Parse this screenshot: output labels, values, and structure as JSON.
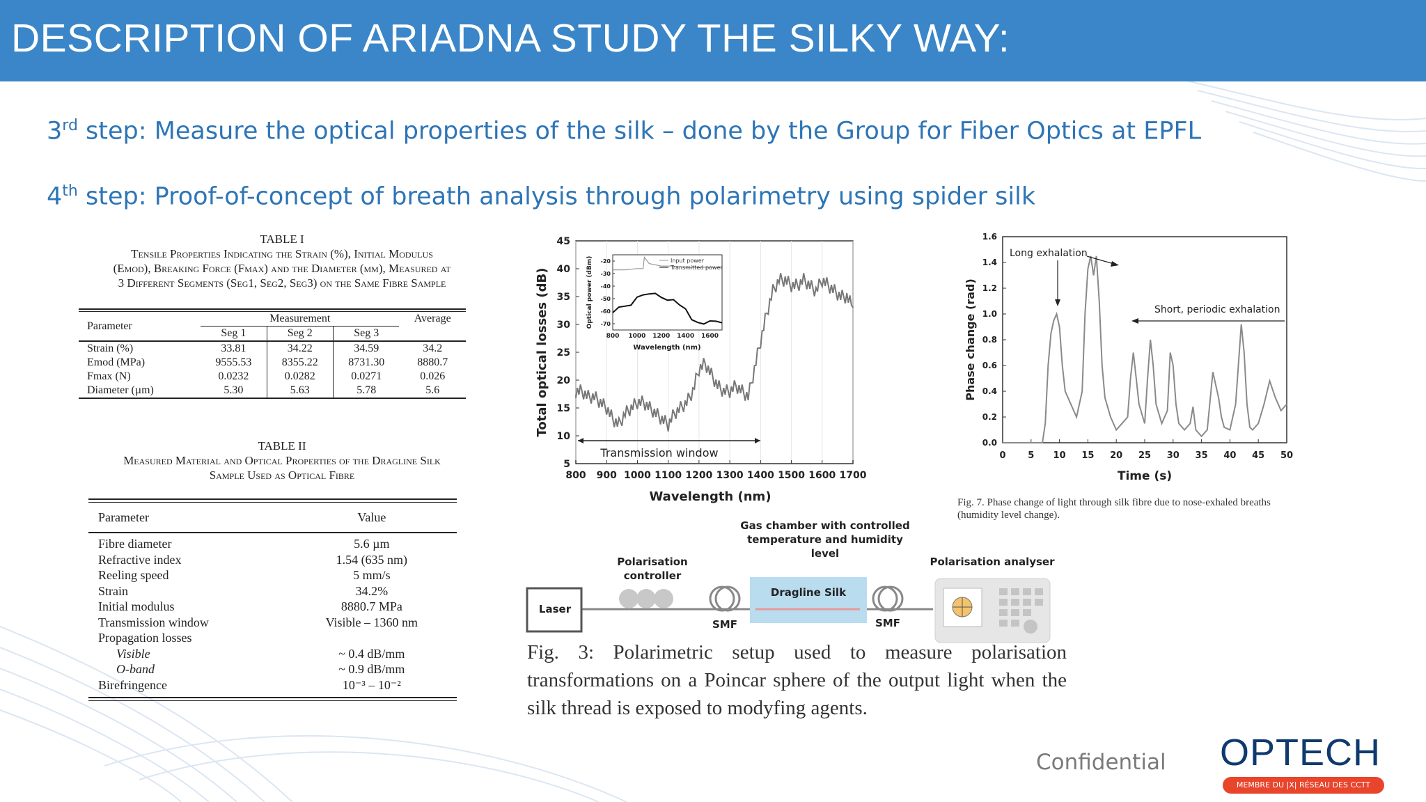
{
  "header": {
    "title": "DESCRIPTION OF ARIADNA STUDY THE SILKY WAY:"
  },
  "steps": [
    {
      "num": "3",
      "sup": "rd",
      "text": " step: Measure the optical properties of the silk – done by the Group for Fiber Optics at EPFL"
    },
    {
      "num": "4",
      "sup": "th",
      "text": " step: Proof-of-concept of breath analysis through polarimetry using spider silk"
    }
  ],
  "table1": {
    "label": "TABLE I",
    "caption_l1": "Tensile Properties Indicating the Strain (%), Initial Modulus",
    "caption_l2": "(Emod), Breaking Force (Fmax) and the Diameter (µm), Measured at",
    "caption_l3": "3 Different Segments (Seg1, Seg2, Seg3) on the Same Fibre Sample",
    "head_param": "Parameter",
    "head_measurement": "Measurement",
    "head_average": "Average",
    "seg_headers": [
      "Seg 1",
      "Seg 2",
      "Seg 3"
    ],
    "rows": [
      {
        "param": "Strain (%)",
        "values": [
          "33.81",
          "34.22",
          "34.59"
        ],
        "avg": "34.2"
      },
      {
        "param": "Emod (MPa)",
        "values": [
          "9555.53",
          "8355.22",
          "8731.30"
        ],
        "avg": "8880.7"
      },
      {
        "param": "Fmax (N)",
        "values": [
          "0.0232",
          "0.0282",
          "0.0271"
        ],
        "avg": "0.026"
      },
      {
        "param": "Diameter (µm)",
        "values": [
          "5.30",
          "5.63",
          "5.78"
        ],
        "avg": "5.6"
      }
    ]
  },
  "table2": {
    "label": "TABLE II",
    "caption_l1": "Measured Material and Optical Properties of the Dragline Silk",
    "caption_l2": "Sample Used as Optical Fibre",
    "head_param": "Parameter",
    "head_value": "Value",
    "rows": [
      {
        "param": "Fibre diameter",
        "value": "5.6 µm"
      },
      {
        "param": "Refractive index",
        "value": "1.54 (635 nm)"
      },
      {
        "param": "Reeling speed",
        "value": "5 mm/s"
      },
      {
        "param": "Strain",
        "value": "34.2%"
      },
      {
        "param": "Initial modulus",
        "value": "8880.7 MPa"
      },
      {
        "param": "Transmission window",
        "value": "Visible – 1360 nm"
      },
      {
        "param": "Propagation losses",
        "value": ""
      },
      {
        "param": "Visible",
        "value": "~ 0.4 dB/mm"
      },
      {
        "param": "O-band",
        "value": "~ 0.9 dB/mm"
      },
      {
        "param": "Birefringence",
        "value": "10⁻³ – 10⁻²"
      }
    ]
  },
  "chart_data": [
    {
      "type": "line",
      "xlabel": "Wavelength (nm)",
      "ylabel": "Total optical losses (dB)",
      "xlim": [
        800,
        1700
      ],
      "ylim": [
        5,
        45
      ],
      "xticks": [
        "800",
        "900",
        "1000",
        "1100",
        "1200",
        "1300",
        "1400",
        "1500",
        "1600",
        "1700"
      ],
      "yticks": [
        "5",
        "10",
        "15",
        "20",
        "25",
        "30",
        "35",
        "40",
        "45"
      ],
      "annotation": "Transmission window",
      "x": [
        800,
        820,
        840,
        860,
        880,
        900,
        920,
        940,
        960,
        980,
        1000,
        1020,
        1040,
        1060,
        1080,
        1100,
        1120,
        1140,
        1160,
        1180,
        1200,
        1220,
        1240,
        1260,
        1280,
        1300,
        1320,
        1340,
        1360,
        1380,
        1400,
        1420,
        1440,
        1460,
        1480,
        1500,
        1520,
        1540,
        1560,
        1580,
        1600,
        1620,
        1640,
        1660,
        1680,
        1700
      ],
      "y": [
        18,
        18,
        17,
        17,
        16,
        15,
        13,
        12,
        14,
        15,
        16,
        16,
        15,
        14,
        13,
        12,
        14,
        15,
        16,
        18,
        22,
        23,
        21,
        19,
        18,
        18,
        19,
        18,
        17,
        22,
        27,
        32,
        36,
        38,
        38,
        37,
        37,
        38,
        37,
        36,
        38,
        37,
        36,
        35,
        35,
        33
      ],
      "inset": {
        "xlabel": "Wavelength (nm)",
        "ylabel": "Optical power (dBm)",
        "xticks": [
          "800",
          "1000",
          "1200",
          "1400",
          "1600"
        ],
        "yticks": [
          "-20",
          "-30",
          "-40",
          "-50",
          "-60",
          "-70"
        ],
        "series": [
          {
            "name": "Input power",
            "x": [
              800,
              900,
              1000,
              1050,
              1060,
              1100,
              1200,
              1300,
              1400,
              1500,
              1600,
              1700
            ],
            "y": [
              -27,
              -27,
              -26,
              -26,
              -17,
              -22,
              -24,
              -24,
              -25,
              -25,
              -25,
              -25
            ]
          },
          {
            "name": "Transmitted power",
            "x": [
              800,
              850,
              900,
              950,
              1000,
              1050,
              1100,
              1150,
              1200,
              1250,
              1300,
              1350,
              1400,
              1450,
              1500,
              1550,
              1600,
              1650,
              1700
            ],
            "y": [
              -60,
              -58,
              -56,
              -54,
              -50,
              -47,
              -45,
              -47,
              -49,
              -50,
              -52,
              -55,
              -57,
              -68,
              -69,
              -69,
              -69,
              -68,
              -68
            ]
          }
        ]
      }
    },
    {
      "type": "line",
      "xlabel": "Time (s)",
      "ylabel": "Phase change (rad)",
      "xlim": [
        0,
        50
      ],
      "ylim": [
        0,
        1.6
      ],
      "xticks": [
        "0",
        "5",
        "10",
        "15",
        "20",
        "25",
        "30",
        "35",
        "40",
        "45",
        "50"
      ],
      "yticks": [
        "0.0",
        "0.2",
        "0.4",
        "0.6",
        "0.8",
        "1.0",
        "1.2",
        "1.4",
        "1.6"
      ],
      "annotations": [
        "Long exhalation",
        "Short, periodic exhalation"
      ],
      "x": [
        0,
        4,
        5,
        6,
        7,
        7.5,
        8,
        8.5,
        9,
        9.5,
        10,
        10.5,
        11,
        12,
        13,
        14,
        14.5,
        15,
        15.5,
        16,
        16.5,
        17,
        17.5,
        18,
        19,
        20,
        21,
        22,
        22.5,
        23,
        23.5,
        24,
        25,
        25.5,
        26,
        26.5,
        27,
        28,
        29,
        29.5,
        30,
        30.5,
        31,
        32,
        33,
        33.5,
        34,
        35,
        36,
        37,
        38,
        38.5,
        39,
        40,
        41,
        42,
        42.5,
        43,
        43.5,
        44,
        45,
        46,
        47,
        48,
        49,
        50
      ],
      "y": [
        0,
        0,
        0,
        0,
        0,
        0.15,
        0.6,
        0.85,
        0.95,
        1.0,
        0.9,
        0.6,
        0.4,
        0.3,
        0.2,
        0.4,
        1.0,
        1.35,
        1.45,
        1.3,
        1.45,
        1.1,
        0.6,
        0.35,
        0.2,
        0.1,
        0.15,
        0.2,
        0.5,
        0.7,
        0.5,
        0.3,
        0.15,
        0.5,
        0.8,
        0.6,
        0.3,
        0.15,
        0.25,
        0.7,
        0.6,
        0.3,
        0.15,
        0.1,
        0.15,
        0.28,
        0.1,
        0.05,
        0.1,
        0.55,
        0.35,
        0.2,
        0.12,
        0.1,
        0.3,
        0.92,
        0.7,
        0.3,
        0.12,
        0.1,
        0.15,
        0.3,
        0.48,
        0.35,
        0.25,
        0.3
      ]
    }
  ],
  "fig7_caption": "Fig. 7.    Phase change of light through silk fibre due to nose-exhaled breaths (humidity level change).",
  "setup": {
    "gas_chamber": "Gas chamber with controlled temperature and humidity level",
    "pol_controller": "Polarisation controller",
    "pol_analyser": "Polarisation analyser",
    "laser": "Laser",
    "smf_left": "SMF",
    "dragline": "Dragline Silk",
    "smf_right": "SMF"
  },
  "fig3_caption": "Fig. 3: Polarimetric setup used to measure polarisation transformations on a Poincar sphere of the output light when the silk thread is exposed to modyfing agents.",
  "footer": {
    "confidential": "Confidential",
    "logo": "OPTECH",
    "logo_sub": "MEMBRE DU |X| RÉSEAU DES CCTT"
  },
  "colors": {
    "header_bg": "#3a86c8",
    "step_text": "#2e75b6",
    "logo_blue": "#0e3a6e",
    "logo_badge": "#e8452c"
  }
}
